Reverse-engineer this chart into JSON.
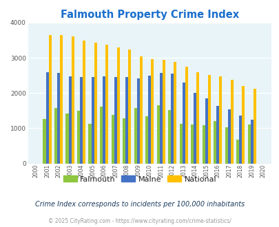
{
  "title": "Falmouth Property Crime Index",
  "title_color": "#1a6fcc",
  "years": [
    "2000",
    "2001",
    "2002",
    "2003",
    "2004",
    "2005",
    "2006",
    "2007",
    "2008",
    "2009",
    "2010",
    "2011",
    "2012",
    "2013",
    "2014",
    "2015",
    "2016",
    "2017",
    "2018",
    "2019",
    "2020"
  ],
  "falmouth": [
    0,
    1270,
    1580,
    1420,
    1490,
    1130,
    1620,
    1390,
    1290,
    1570,
    1340,
    1660,
    1510,
    1120,
    1110,
    1090,
    1210,
    1020,
    670,
    1110,
    0
  ],
  "maine": [
    0,
    2600,
    2580,
    2480,
    2450,
    2450,
    2480,
    2450,
    2460,
    2420,
    2490,
    2570,
    2560,
    2300,
    2000,
    1840,
    1640,
    1530,
    1360,
    1240,
    0
  ],
  "national": [
    0,
    3650,
    3640,
    3600,
    3500,
    3440,
    3380,
    3300,
    3240,
    3040,
    2970,
    2940,
    2880,
    2740,
    2600,
    2510,
    2470,
    2380,
    2200,
    2120,
    0
  ],
  "falmouth_color": "#8dc63f",
  "maine_color": "#4472c4",
  "national_color": "#ffc000",
  "bg_color": "#e8f4f8",
  "ylim": [
    0,
    4000
  ],
  "yticks": [
    0,
    1000,
    2000,
    3000,
    4000
  ],
  "note": "Crime Index corresponds to incidents per 100,000 inhabitants",
  "copyright": "© 2025 CityRating.com - https://www.cityrating.com/crime-statistics/",
  "note_color": "#1a3a5c",
  "copyright_color": "#999999",
  "bar_width": 0.25,
  "legend_labels": [
    "Falmouth",
    "Maine",
    "National"
  ]
}
